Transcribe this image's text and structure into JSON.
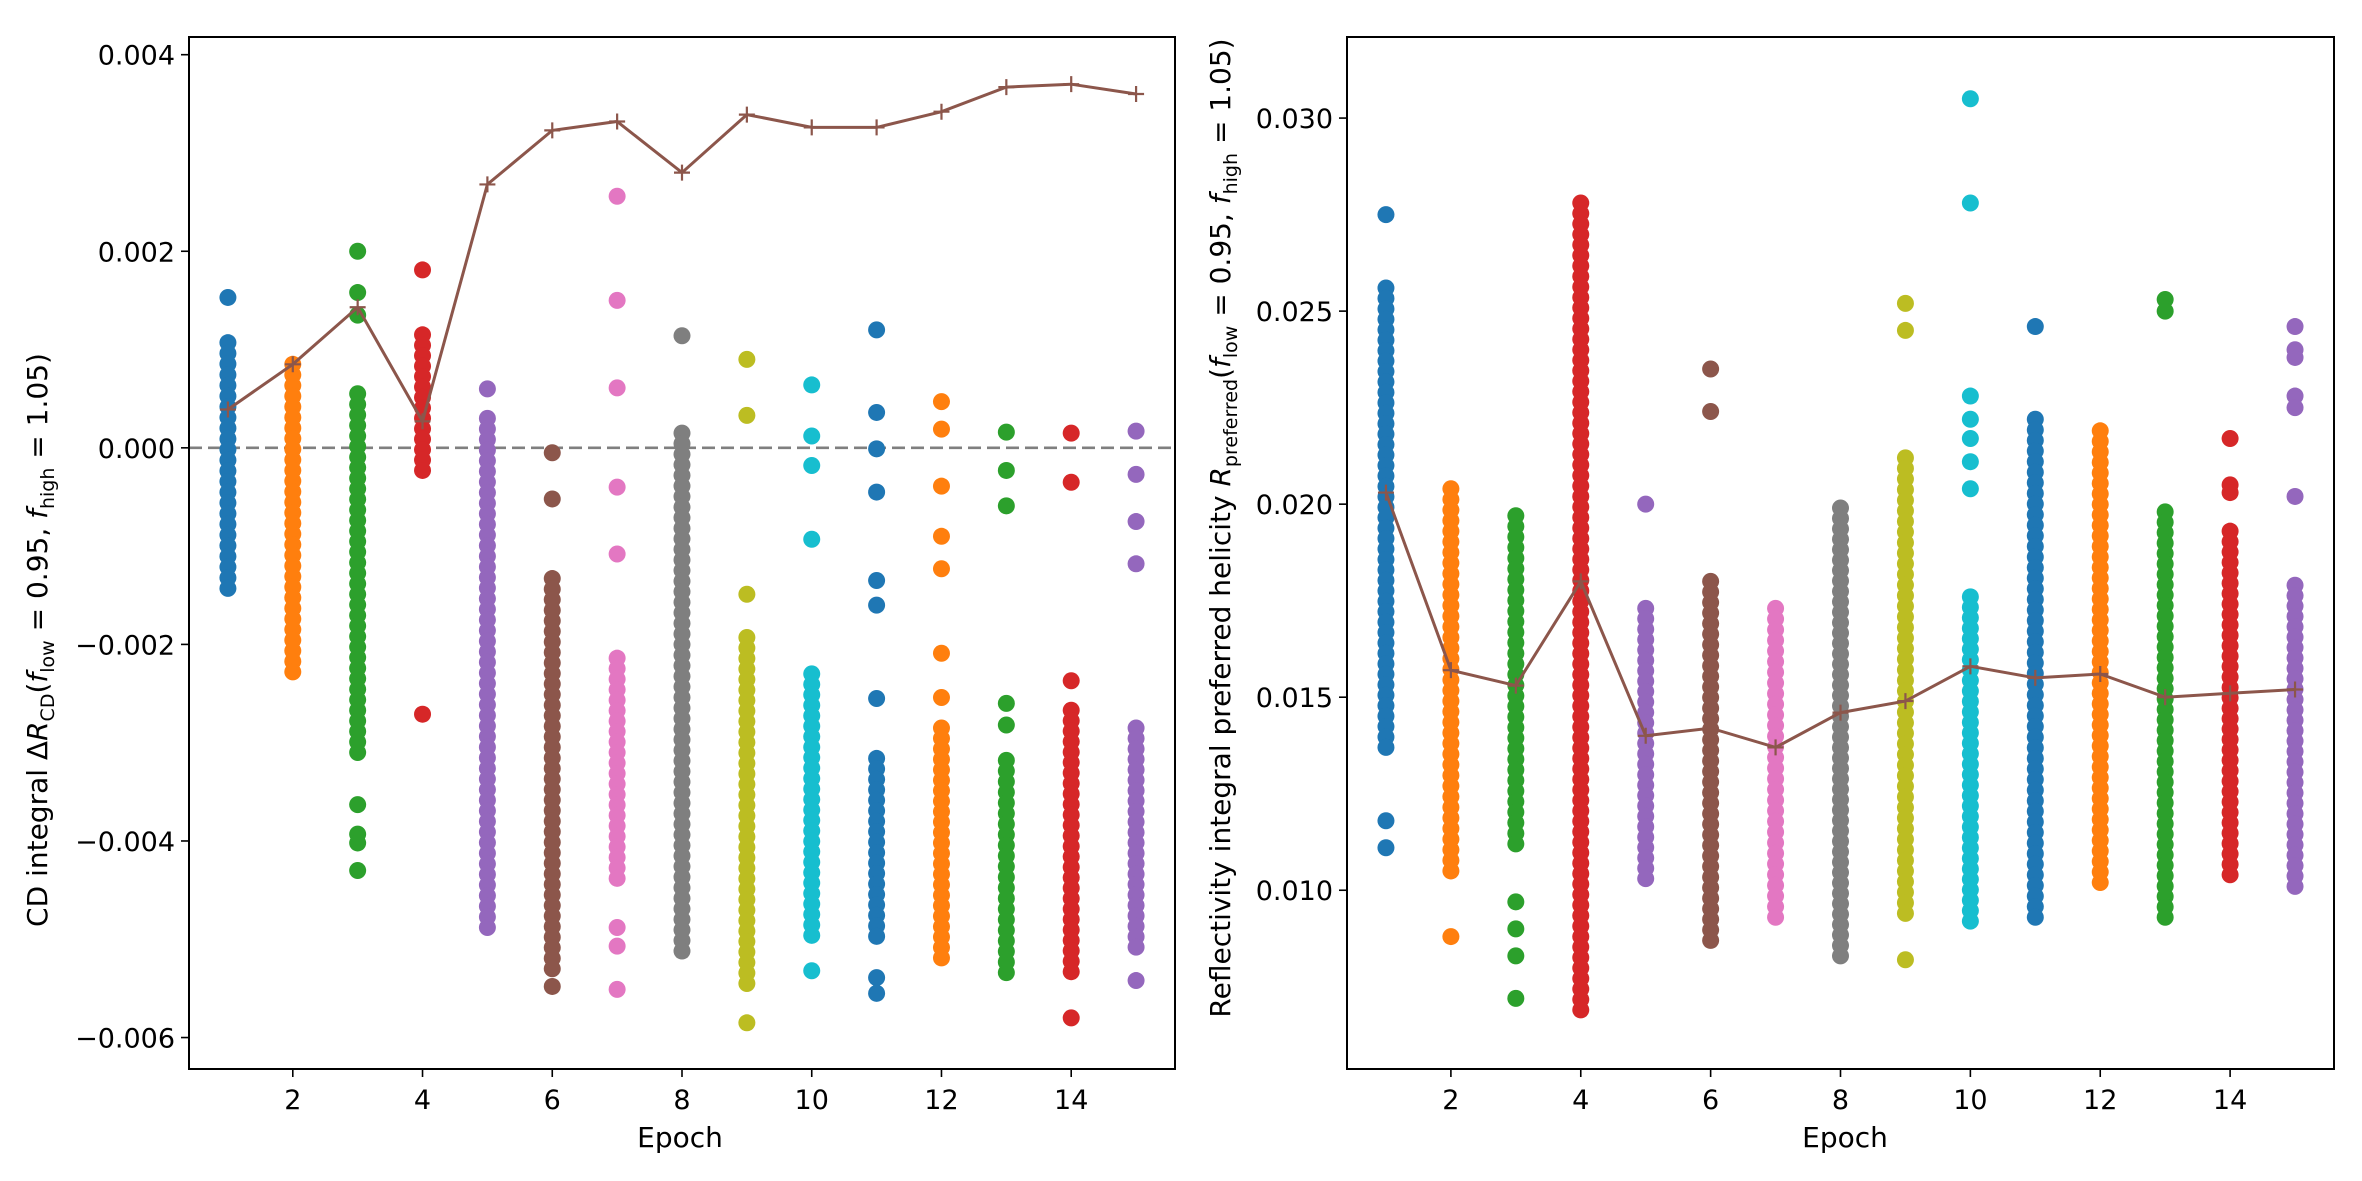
{
  "colors": {
    "cycle": [
      "#1f77b4",
      "#ff7f0e",
      "#2ca02c",
      "#d62728",
      "#9467bd",
      "#8c564b",
      "#e377c2",
      "#7f7f7f",
      "#bcbd22",
      "#17becf"
    ],
    "mean_line": "#8c564b",
    "zero_line": "#7f7f7f",
    "axes": "#000000",
    "background": "#ffffff"
  },
  "chart_data": [
    {
      "type": "scatter",
      "xlabel": "Epoch",
      "ylabel": "CD integral ΔR_CD(f_low = 0.95, f_high = 1.05)",
      "ylabel_parts": {
        "prefix": "CD integral Δ",
        "var": "R",
        "var_sub": "CD",
        "open": "(",
        "f1": "f",
        "f1_sub": "low",
        "mid": " = 0.95, ",
        "f2": "f",
        "f2_sub": "high",
        "close": " = 1.05)"
      },
      "xlim": [
        0.4,
        15.6
      ],
      "ylim": [
        -0.00632,
        0.00418
      ],
      "xticks": [
        2,
        4,
        6,
        8,
        10,
        12,
        14
      ],
      "xtick_labels": [
        "2",
        "4",
        "6",
        "8",
        "10",
        "12",
        "14"
      ],
      "yticks": [
        -0.006,
        -0.004,
        -0.002,
        0.0,
        0.002,
        0.004
      ],
      "ytick_labels": [
        "−0.006",
        "−0.004",
        "−0.002",
        "0.000",
        "0.002",
        "0.004"
      ],
      "reference_line": {
        "y": 0.0,
        "style": "dashed"
      },
      "series": [
        {
          "epoch": 1,
          "min": -0.00143,
          "max": 0.00107,
          "outliers": [
            0.00153
          ]
        },
        {
          "epoch": 2,
          "min": -0.00228,
          "max": 0.00085,
          "outliers": []
        },
        {
          "epoch": 3,
          "min": -0.0031,
          "max": 0.00055,
          "outliers": [
            0.002,
            0.00158,
            0.00135,
            -0.00363,
            -0.00393,
            -0.00402,
            -0.0043
          ]
        },
        {
          "epoch": 4,
          "min": -0.00023,
          "max": 0.00115,
          "outliers": [
            0.00181,
            -0.00271
          ]
        },
        {
          "epoch": 5,
          "min": -0.00488,
          "max": 0.0003,
          "outliers": [
            0.0006
          ]
        },
        {
          "epoch": 6,
          "min": -0.0053,
          "max": -0.00133,
          "outliers": [
            -5e-05,
            -0.00052,
            -0.00548
          ]
        },
        {
          "epoch": 7,
          "min": -0.00438,
          "max": -0.00214,
          "outliers": [
            0.00256,
            0.0015,
            0.00061,
            -0.0004,
            -0.00108,
            -0.00488,
            -0.00507,
            -0.00551
          ]
        },
        {
          "epoch": 8,
          "min": -0.00512,
          "max": 0.00015,
          "outliers": [
            0.00114
          ]
        },
        {
          "epoch": 9,
          "min": -0.00545,
          "max": -0.00193,
          "outliers": [
            0.0009,
            0.00033,
            -0.00149,
            -0.00585
          ]
        },
        {
          "epoch": 10,
          "min": -0.00496,
          "max": -0.0023,
          "outliers": [
            0.00064,
            0.00012,
            -0.00018,
            -0.00093,
            -0.00532
          ]
        },
        {
          "epoch": 11,
          "min": -0.00497,
          "max": -0.00316,
          "outliers": [
            0.0012,
            0.00036,
            -1e-05,
            -0.00045,
            -0.00135,
            -0.0016,
            -0.00255,
            -0.00539,
            -0.00555
          ]
        },
        {
          "epoch": 12,
          "min": -0.00519,
          "max": -0.00285,
          "outliers": [
            0.00047,
            0.00019,
            -0.00039,
            -0.0009,
            -0.00123,
            -0.00209,
            -0.00254
          ]
        },
        {
          "epoch": 13,
          "min": -0.00534,
          "max": -0.00318,
          "outliers": [
            0.00016,
            -0.00023,
            -0.00059,
            -0.0026,
            -0.00282
          ]
        },
        {
          "epoch": 14,
          "min": -0.00533,
          "max": -0.00267,
          "outliers": [
            0.00015,
            -0.00035,
            -0.00237,
            -0.0058
          ]
        },
        {
          "epoch": 15,
          "min": -0.00508,
          "max": -0.00285,
          "outliers": [
            0.00017,
            -0.00027,
            -0.00075,
            -0.00118,
            -0.00542
          ]
        }
      ],
      "mean_line": {
        "x": [
          1,
          2,
          3,
          4,
          5,
          6,
          7,
          8,
          9,
          10,
          11,
          12,
          13,
          14,
          15
        ],
        "y": [
          0.00039,
          0.00085,
          0.00143,
          0.00027,
          0.00268,
          0.00323,
          0.00332,
          0.0028,
          0.00339,
          0.00326,
          0.00326,
          0.00342,
          0.00367,
          0.0037,
          0.0036
        ],
        "marker": "+"
      }
    },
    {
      "type": "scatter",
      "xlabel": "Epoch",
      "ylabel": "Reflectivity integral preferred helicity R_preferred(f_low = 0.95, f_high = 1.05)",
      "ylabel_parts": {
        "prefix": "Reflectivity integral preferred helicity ",
        "var": "R",
        "var_sub": "preferred",
        "open": "(",
        "f1": "f",
        "f1_sub": "low",
        "mid": " = 0.95, ",
        "f2": "f",
        "f2_sub": "high",
        "close": " = 1.05)"
      },
      "xlim": [
        0.4,
        15.6
      ],
      "ylim": [
        0.00537,
        0.0321
      ],
      "xticks": [
        2,
        4,
        6,
        8,
        10,
        12,
        14
      ],
      "xtick_labels": [
        "2",
        "4",
        "6",
        "8",
        "10",
        "12",
        "14"
      ],
      "yticks": [
        0.01,
        0.015,
        0.02,
        0.025,
        0.03
      ],
      "ytick_labels": [
        "0.010",
        "0.015",
        "0.020",
        "0.025",
        "0.030"
      ],
      "series": [
        {
          "epoch": 1,
          "min": 0.0137,
          "max": 0.0256,
          "outliers": [
            0.0275,
            0.0118,
            0.0111
          ]
        },
        {
          "epoch": 2,
          "min": 0.0105,
          "max": 0.0204,
          "outliers": [
            0.0088
          ]
        },
        {
          "epoch": 3,
          "min": 0.0112,
          "max": 0.0197,
          "outliers": [
            0.0097,
            0.009,
            0.0083,
            0.0072
          ]
        },
        {
          "epoch": 4,
          "min": 0.0069,
          "max": 0.0278,
          "outliers": []
        },
        {
          "epoch": 5,
          "min": 0.0103,
          "max": 0.0173,
          "outliers": [
            0.02
          ]
        },
        {
          "epoch": 6,
          "min": 0.0087,
          "max": 0.018,
          "outliers": [
            0.0235,
            0.0224
          ]
        },
        {
          "epoch": 7,
          "min": 0.0093,
          "max": 0.0173,
          "outliers": []
        },
        {
          "epoch": 8,
          "min": 0.0083,
          "max": 0.0199,
          "outliers": []
        },
        {
          "epoch": 9,
          "min": 0.0094,
          "max": 0.0212,
          "outliers": [
            0.0252,
            0.0245,
            0.0082
          ]
        },
        {
          "epoch": 10,
          "min": 0.0092,
          "max": 0.0176,
          "outliers": [
            0.0305,
            0.0278,
            0.0228,
            0.0222,
            0.0217,
            0.0211,
            0.0204
          ]
        },
        {
          "epoch": 11,
          "min": 0.0093,
          "max": 0.0222,
          "outliers": [
            0.0246
          ]
        },
        {
          "epoch": 12,
          "min": 0.0102,
          "max": 0.0219,
          "outliers": []
        },
        {
          "epoch": 13,
          "min": 0.0093,
          "max": 0.0198,
          "outliers": [
            0.0253,
            0.025
          ]
        },
        {
          "epoch": 14,
          "min": 0.0104,
          "max": 0.0193,
          "outliers": [
            0.0217,
            0.0205,
            0.0203
          ]
        },
        {
          "epoch": 15,
          "min": 0.0101,
          "max": 0.0179,
          "outliers": [
            0.0246,
            0.024,
            0.0238,
            0.0228,
            0.0225,
            0.0202
          ]
        }
      ],
      "mean_line": {
        "x": [
          1,
          2,
          3,
          4,
          5,
          6,
          7,
          8,
          9,
          10,
          11,
          12,
          13,
          14,
          15
        ],
        "y": [
          0.0203,
          0.0157,
          0.0153,
          0.018,
          0.014,
          0.0142,
          0.0137,
          0.0146,
          0.0149,
          0.0158,
          0.0155,
          0.0156,
          0.015,
          0.0151,
          0.0152
        ],
        "marker": "+"
      }
    }
  ]
}
